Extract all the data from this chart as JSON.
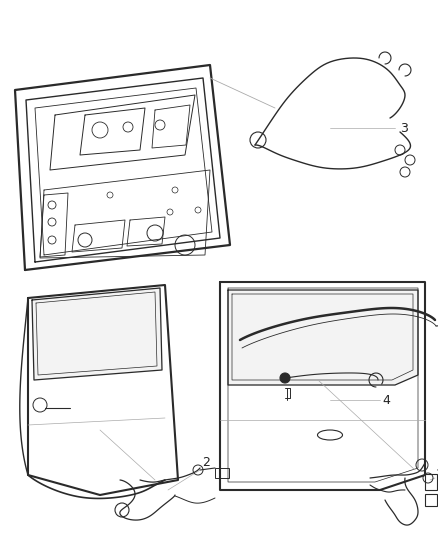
{
  "background_color": "#ffffff",
  "line_color": "#2a2a2a",
  "light_line_color": "#aaaaaa",
  "fig_width": 4.38,
  "fig_height": 5.33,
  "dpi": 100,
  "label_fontsize": 9,
  "label_color": "#222222"
}
